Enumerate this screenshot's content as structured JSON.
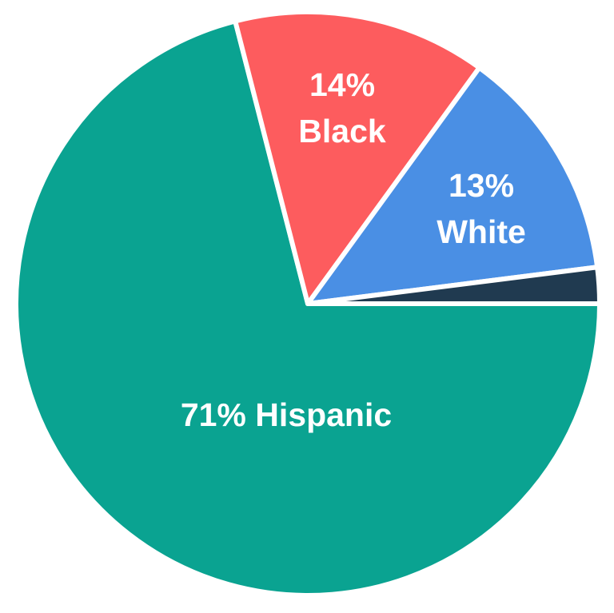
{
  "chart_data": {
    "type": "pie",
    "slices": [
      {
        "name": "Hispanic",
        "value": 71,
        "color": "#0aa391",
        "label_lines": [
          "71% Hispanic"
        ]
      },
      {
        "name": "Black",
        "value": 14,
        "color": "#fd5c5e",
        "label_lines": [
          "14%",
          "Black"
        ]
      },
      {
        "name": "White",
        "value": 13,
        "color": "#4a8fe4",
        "label_lines": [
          "13%",
          "White"
        ]
      },
      {
        "name": "",
        "value": 2,
        "color": "#203a50",
        "label_lines": []
      }
    ]
  }
}
